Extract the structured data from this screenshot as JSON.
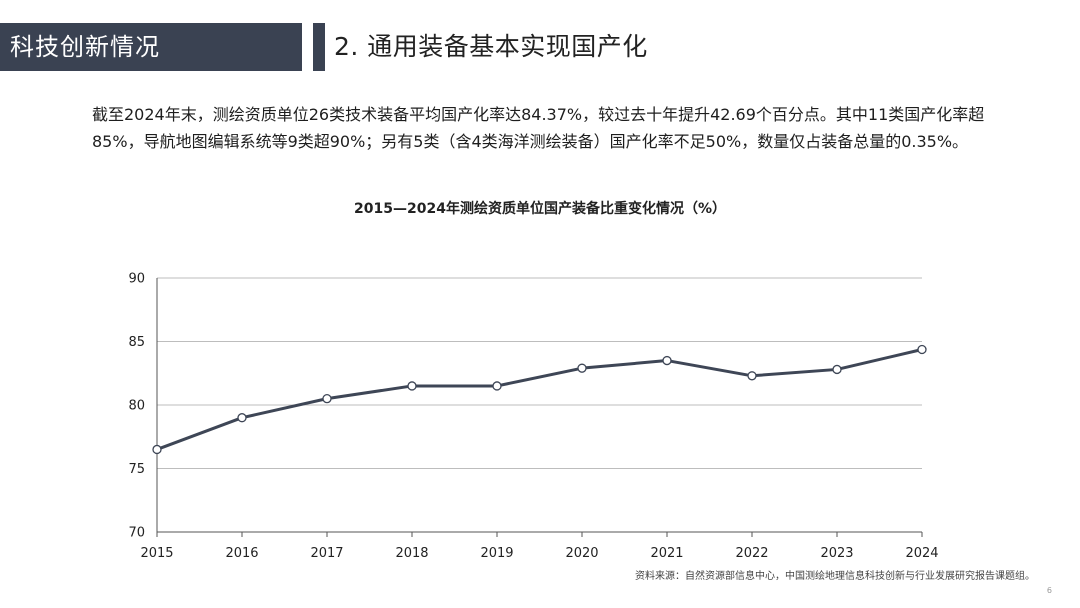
{
  "header": {
    "tag": "科技创新情况",
    "title": "2. 通用装备基本实现国产化"
  },
  "intro": "截至2024年末，测绘资质单位26类技术装备平均国产化率达84.37%，较过去十年提升42.69个百分点。其中11类国产化率超85%，导航地图编辑系统等9类超90%；另有5类（含4类海洋测绘装备）国产化率不足50%，数量仅占装备总量的0.35%。",
  "chart_data": {
    "type": "line",
    "title": "2015—2024年测绘资质单位国产装备比重变化情况（%）",
    "categories": [
      "2015",
      "2016",
      "2017",
      "2018",
      "2019",
      "2020",
      "2021",
      "2022",
      "2023",
      "2024"
    ],
    "series": [
      {
        "name": "国产装备比重",
        "values": [
          76.5,
          79.0,
          80.5,
          81.5,
          81.5,
          82.9,
          83.5,
          82.3,
          82.8,
          84.37
        ]
      }
    ],
    "ylim": [
      70,
      90
    ],
    "yticks": [
      "70",
      "75",
      "80",
      "85",
      "90"
    ],
    "grid": true,
    "line_color": "#3e4656"
  },
  "footer": {
    "source": "资料来源：自然资源部信息中心，中国测绘地理信息科技创新与行业发展研究报告课题组。",
    "page": "6"
  }
}
